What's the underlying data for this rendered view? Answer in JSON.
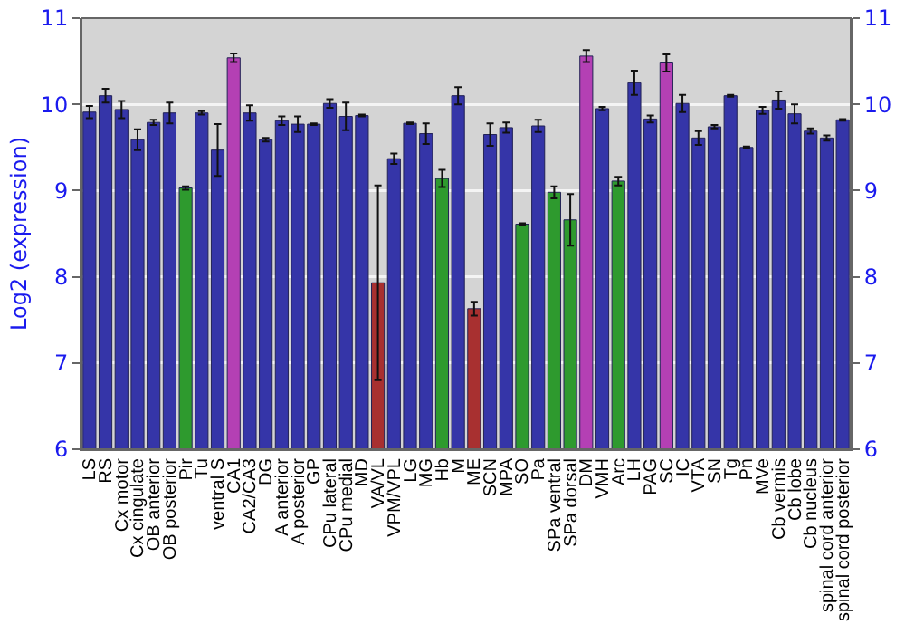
{
  "chart_data": {
    "type": "bar",
    "ylabel": "Log2 (expression)",
    "categories": [
      "LS",
      "RS",
      "Cx motor",
      "Cx cingulate",
      "OB anterior",
      "OB posterior",
      "Pir",
      "Tu",
      "ventral S",
      "CA1",
      "CA2/CA3",
      "DG",
      "A anterior",
      "A posterior",
      "GP",
      "CPu lateral",
      "CPu medial",
      "MD",
      "VA/VL",
      "VPM/VPL",
      "LG",
      "MG",
      "Hb",
      "M",
      "ME",
      "SCN",
      "MPA",
      "SO",
      "Pa",
      "SPa ventral",
      "SPa dorsal",
      "DM",
      "VMH",
      "Arc",
      "LH",
      "PAG",
      "SC",
      "IC",
      "VTA",
      "SN",
      "Tg",
      "Pn",
      "MVe",
      "Cb vermis",
      "Cb lobe",
      "Cb nucleus",
      "spinal cord anterior",
      "spinal cord posterior"
    ],
    "values": [
      9.91,
      10.1,
      9.94,
      9.59,
      9.79,
      9.9,
      9.03,
      9.9,
      9.47,
      10.54,
      9.9,
      9.59,
      9.81,
      9.77,
      9.77,
      10.01,
      9.86,
      9.87,
      7.93,
      9.37,
      9.78,
      9.66,
      9.14,
      10.1,
      7.63,
      9.65,
      9.73,
      8.61,
      9.75,
      8.98,
      8.66,
      10.56,
      9.95,
      9.11,
      10.25,
      9.83,
      10.48,
      10.01,
      9.61,
      9.74,
      10.1,
      9.5,
      9.93,
      10.05,
      9.89,
      9.69,
      9.61,
      9.82
    ],
    "errors": [
      0.07,
      0.08,
      0.1,
      0.12,
      0.03,
      0.12,
      0.02,
      0.02,
      0.3,
      0.05,
      0.09,
      0.02,
      0.05,
      0.09,
      0.01,
      0.05,
      0.16,
      0.01,
      1.13,
      0.06,
      0.01,
      0.12,
      0.1,
      0.1,
      0.08,
      0.13,
      0.06,
      0.01,
      0.07,
      0.07,
      0.3,
      0.07,
      0.02,
      0.05,
      0.14,
      0.04,
      0.1,
      0.1,
      0.08,
      0.02,
      0.01,
      0.01,
      0.04,
      0.1,
      0.11,
      0.03,
      0.03,
      0.01
    ],
    "colors": [
      "#3535a8",
      "#3535a8",
      "#3535a8",
      "#3535a8",
      "#3535a8",
      "#3535a8",
      "#2e9a2e",
      "#3535a8",
      "#3535a8",
      "#b440b4",
      "#3535a8",
      "#3535a8",
      "#3535a8",
      "#3535a8",
      "#3535a8",
      "#3535a8",
      "#3535a8",
      "#3535a8",
      "#a83030",
      "#3535a8",
      "#3535a8",
      "#3535a8",
      "#2e9a2e",
      "#3535a8",
      "#a83030",
      "#3535a8",
      "#3535a8",
      "#2e9a2e",
      "#3535a8",
      "#2e9a2e",
      "#2e9a2e",
      "#b440b4",
      "#3535a8",
      "#2e9a2e",
      "#3535a8",
      "#3535a8",
      "#b440b4",
      "#3535a8",
      "#3535a8",
      "#3535a8",
      "#3535a8",
      "#3535a8",
      "#3535a8",
      "#3535a8",
      "#3535a8",
      "#3535a8",
      "#3535a8",
      "#3535a8"
    ],
    "ylim": [
      6,
      11
    ],
    "yticks": [
      6,
      7,
      8,
      9,
      10,
      11
    ],
    "y2lim": [
      6,
      11
    ],
    "y2ticks": [
      6,
      7,
      8,
      9,
      10,
      11
    ],
    "grid": "y"
  }
}
